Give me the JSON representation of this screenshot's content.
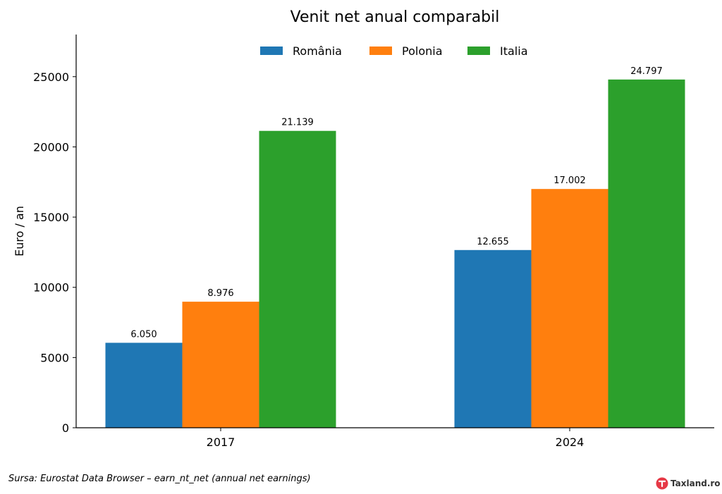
{
  "chart_data": {
    "type": "bar",
    "title": "Venit net anual comparabil",
    "xlabel": "",
    "ylabel": "Euro / an",
    "categories": [
      "2017",
      "2024"
    ],
    "series": [
      {
        "name": "România",
        "color": "#1f77b4",
        "values": [
          6050,
          12655
        ],
        "labels": [
          "6.050",
          "12.655"
        ]
      },
      {
        "name": "Polonia",
        "color": "#ff7f0e",
        "values": [
          8976,
          17002
        ],
        "labels": [
          "8.976",
          "17.002"
        ]
      },
      {
        "name": "Italia",
        "color": "#2ca02c",
        "values": [
          21139,
          24797
        ],
        "labels": [
          "21.139",
          "24.797"
        ]
      }
    ],
    "ylim": [
      0,
      28000
    ],
    "yticks": [
      0,
      5000,
      10000,
      15000,
      20000,
      25000
    ],
    "ytick_labels": [
      "0",
      "5000",
      "10000",
      "15000",
      "20000",
      "25000"
    ],
    "grid": false,
    "legend_position": "top-center"
  },
  "source_text": "Sursa: Eurostat Data Browser – earn_nt_net (annual net earnings)",
  "brand": {
    "name": "Taxland.ro",
    "logo_color": "#e63946"
  }
}
